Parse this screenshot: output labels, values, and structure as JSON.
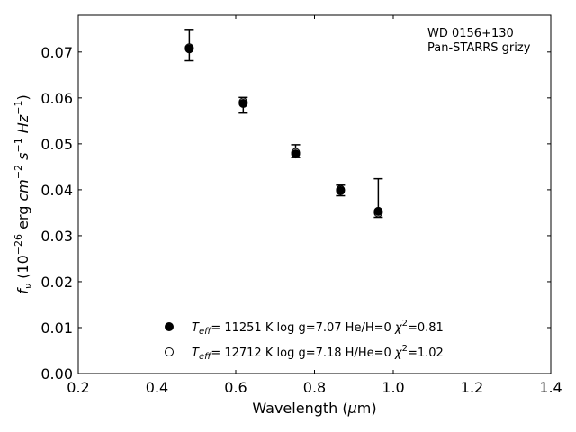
{
  "chart_data": {
    "type": "scatter",
    "title": "",
    "xlabel": "Wavelength (μm)",
    "ylabel": "f_ν (10^-26 erg cm^-2 s^-1 Hz^-1)",
    "xlim": [
      0.2,
      1.4
    ],
    "ylim": [
      0.0,
      0.078
    ],
    "x_ticks": [
      "0.2",
      "0.4",
      "0.6",
      "0.8",
      "1.0",
      "1.2",
      "1.4"
    ],
    "y_ticks": [
      "0.00",
      "0.01",
      "0.02",
      "0.03",
      "0.04",
      "0.05",
      "0.06",
      "0.07"
    ],
    "annotation": [
      "WD 0156+130",
      "Pan-STARRS grizy"
    ],
    "observed": {
      "x": [
        0.482,
        0.619,
        0.752,
        0.866,
        0.962
      ],
      "y": [
        0.0708,
        0.059,
        0.048,
        0.04,
        0.0352
      ],
      "err_low": [
        0.0027,
        0.0023,
        0.001,
        0.0013,
        0.0012
      ],
      "err_high": [
        0.0041,
        0.0011,
        0.0018,
        0.001,
        0.0072
      ]
    },
    "series": [
      {
        "name": "T_eff= 11251 K  log g=7.07  He/H=0  χ²=0.81",
        "marker": "filled",
        "x": [
          0.482,
          0.619,
          0.752,
          0.866,
          0.962
        ],
        "y": [
          0.0707,
          0.0588,
          0.0478,
          0.0398,
          0.0353
        ]
      },
      {
        "name": "T_eff= 12712 K  log g=7.18  H/He=0  χ²=1.02",
        "marker": "open",
        "x": [
          0.482,
          0.619,
          0.752,
          0.866,
          0.962
        ],
        "y": [
          0.0709,
          0.0591,
          0.0481,
          0.04,
          0.035
        ]
      }
    ],
    "legend_position": "bottom-center",
    "grid": false
  }
}
